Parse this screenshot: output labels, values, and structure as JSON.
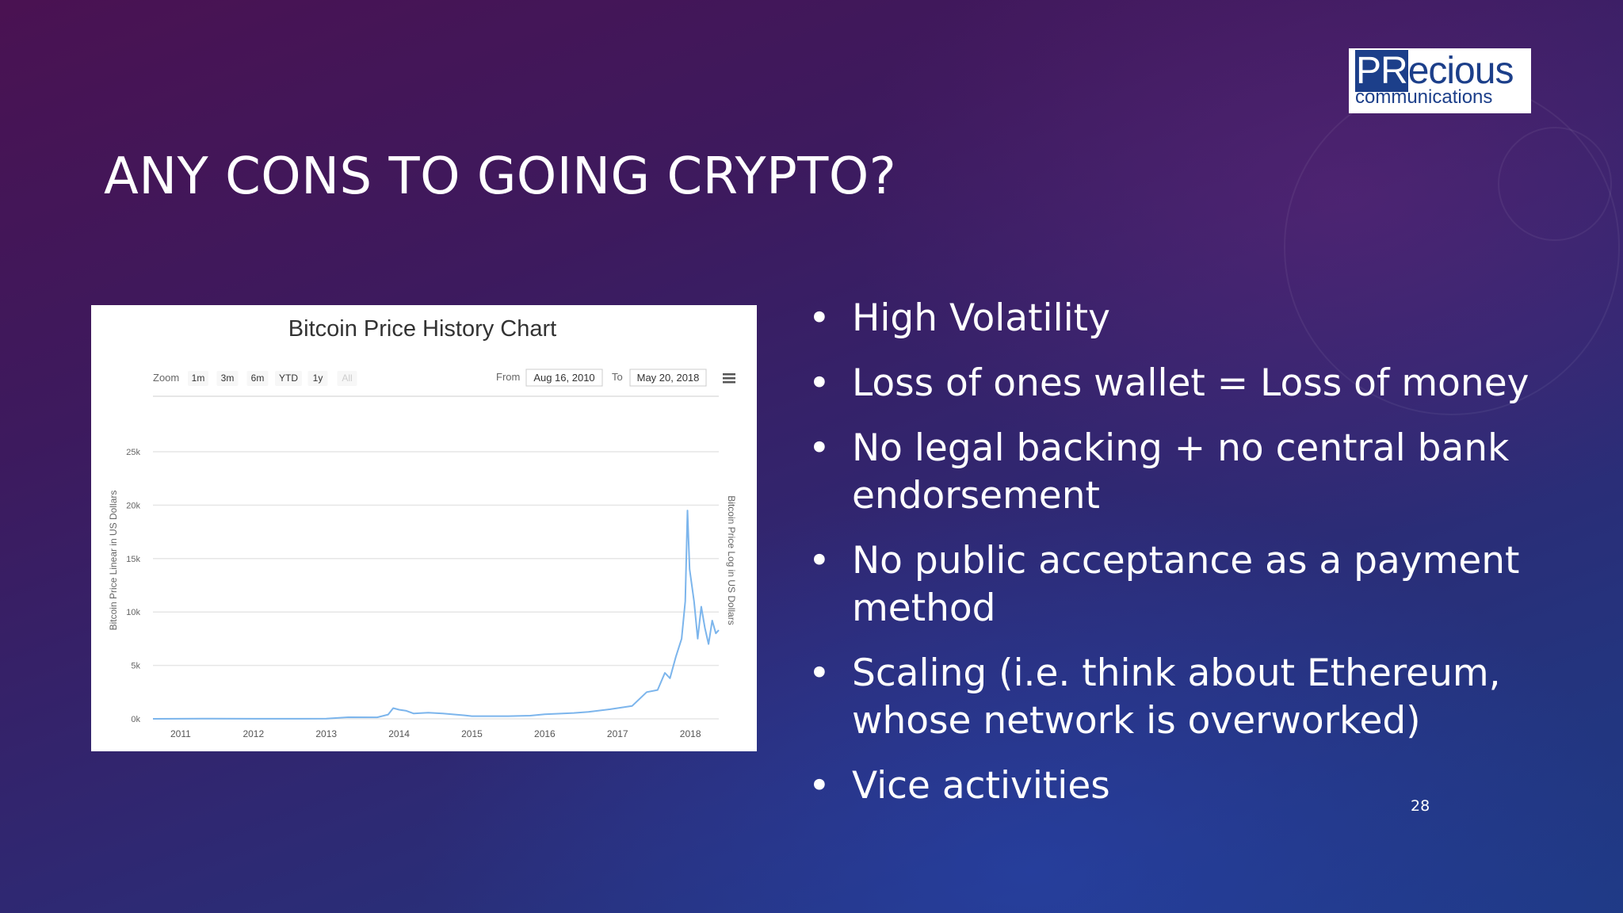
{
  "slide": {
    "title": "ANY CONS TO GOING CRYPTO?",
    "page_number": "28",
    "logo": {
      "part1": "PR",
      "part2": "ecious",
      "sub": "communications"
    },
    "bullet_glyph": "•",
    "bullets": [
      "High Volatility",
      "Loss of ones wallet = Loss of money",
      "No legal backing + no central bank endorsement",
      "No public acceptance as a payment method",
      "Scaling (i.e. think about Ethereum, whose network is overworked)",
      "Vice activities"
    ]
  },
  "chart_controls": {
    "zoom_label": "Zoom",
    "zoom_buttons": [
      "1m",
      "3m",
      "6m",
      "YTD",
      "1y",
      "All"
    ],
    "from_label": "From",
    "from_value": "Aug 16, 2010",
    "to_label": "To",
    "to_value": "May 20, 2018",
    "menu_icon": "hamburger-menu-icon"
  },
  "chart_data": {
    "type": "line",
    "title": "Bitcoin Price History Chart",
    "ylabel": "Bitcoin Price Linear in US Dollars",
    "ylabel_right": "Bitcoin Price Log in US Dollars",
    "ylim": [
      0,
      25000
    ],
    "xlim": [
      2010.62,
      2018.39
    ],
    "y_ticks": [
      0,
      5000,
      10000,
      15000,
      20000,
      25000
    ],
    "y_tick_labels": [
      "0k",
      "5k",
      "10k",
      "15k",
      "20k",
      "25k"
    ],
    "x_ticks": [
      2011,
      2012,
      2013,
      2014,
      2015,
      2016,
      2017,
      2018
    ],
    "x_tick_labels": [
      "2011",
      "2012",
      "2013",
      "2014",
      "2015",
      "2016",
      "2017",
      "2018"
    ],
    "grid": true,
    "line_color": "#7cb5ec",
    "series": [
      {
        "points": [
          [
            2010.62,
            0
          ],
          [
            2011.45,
            20
          ],
          [
            2012.0,
            5
          ],
          [
            2013.0,
            15
          ],
          [
            2013.3,
            150
          ],
          [
            2013.7,
            140
          ],
          [
            2013.85,
            400
          ],
          [
            2013.92,
            1000
          ],
          [
            2014.0,
            850
          ],
          [
            2014.1,
            750
          ],
          [
            2014.2,
            500
          ],
          [
            2014.4,
            580
          ],
          [
            2014.6,
            500
          ],
          [
            2014.9,
            330
          ],
          [
            2015.0,
            250
          ],
          [
            2015.2,
            250
          ],
          [
            2015.5,
            250
          ],
          [
            2015.8,
            300
          ],
          [
            2016.0,
            420
          ],
          [
            2016.4,
            550
          ],
          [
            2016.6,
            650
          ],
          [
            2016.9,
            900
          ],
          [
            2017.0,
            1000
          ],
          [
            2017.2,
            1200
          ],
          [
            2017.4,
            2500
          ],
          [
            2017.55,
            2700
          ],
          [
            2017.65,
            4300
          ],
          [
            2017.72,
            3800
          ],
          [
            2017.8,
            5800
          ],
          [
            2017.88,
            7500
          ],
          [
            2017.93,
            11000
          ],
          [
            2017.96,
            19500
          ],
          [
            2017.99,
            14000
          ],
          [
            2018.05,
            11000
          ],
          [
            2018.1,
            7500
          ],
          [
            2018.15,
            10500
          ],
          [
            2018.2,
            8500
          ],
          [
            2018.25,
            7000
          ],
          [
            2018.3,
            9200
          ],
          [
            2018.35,
            8000
          ],
          [
            2018.39,
            8300
          ]
        ]
      }
    ]
  }
}
